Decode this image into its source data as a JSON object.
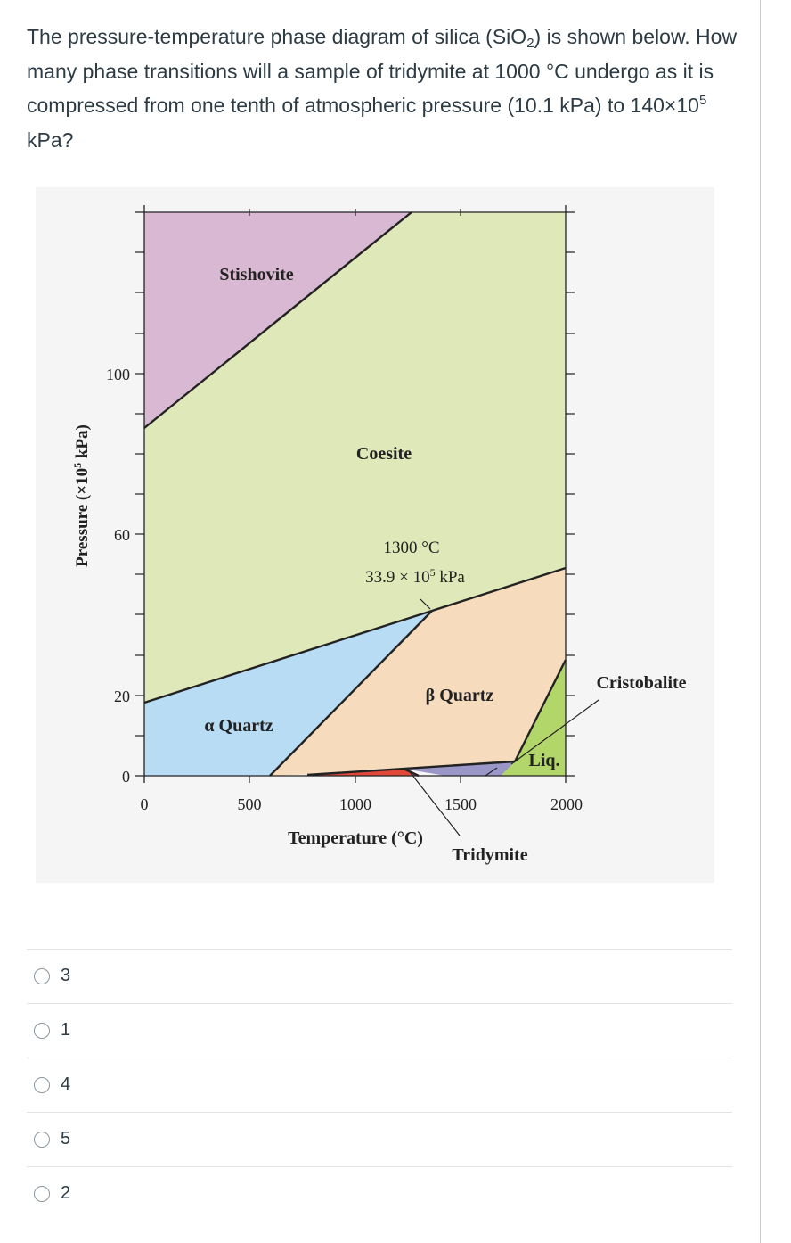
{
  "question": {
    "text_1": "The pressure-temperature phase diagram of silica (SiO",
    "sub": "2",
    "text_2": ") is shown below. How many phase transitions will a sample of tridymite at 1000 °C undergo as it is compressed from one tenth of atmospheric pressure (10.1 kPa) to 140×10",
    "sup": "5",
    "text_3": " kPa?"
  },
  "diagram": {
    "ylabel_main": "Pressure (×10",
    "ylabel_sup": "5",
    "ylabel_end": " kPa)",
    "xlabel": "Temperature (°C)",
    "x_ticks": [
      "0",
      "500",
      "1000",
      "1500",
      "2000"
    ],
    "y_ticks": [
      "0",
      "20",
      "60",
      "100"
    ],
    "phases": {
      "stishovite": "Stishovite",
      "coesite": "Coesite",
      "alpha_quartz": "α Quartz",
      "beta_quartz": "β Quartz",
      "cristobalite": "Cristobalite",
      "liquid": "Liq.",
      "tridymite": "Tridymite"
    },
    "triple_point_temp": "1300 °C",
    "triple_point_pressure_main": "33.9 × 10",
    "triple_point_pressure_sup": "5",
    "triple_point_pressure_end": " kPa",
    "colors": {
      "stishovite": "#d8b8d2",
      "coesite": "#dfe8b8",
      "alpha_quartz": "#b8dcf4",
      "beta_quartz": "#f6dcbc",
      "cristobalite": "#b2d66a",
      "tridymite": "#9a96c8",
      "red_sliver": "#e0483a"
    }
  },
  "answers": [
    {
      "label": "3"
    },
    {
      "label": "1"
    },
    {
      "label": "4"
    },
    {
      "label": "5"
    },
    {
      "label": "2"
    }
  ]
}
